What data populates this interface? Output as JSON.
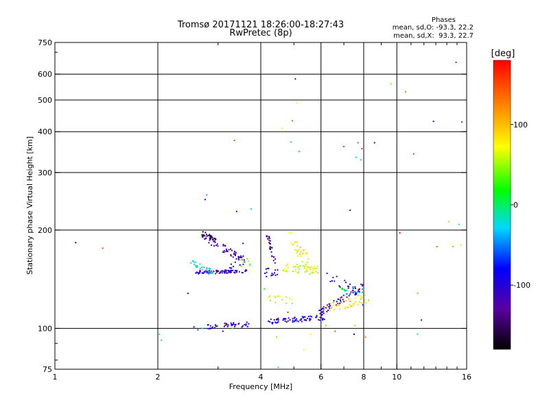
{
  "chart_data": {
    "type": "scatter",
    "title": "Tromsø 20171121 18:26:00-18:27:43",
    "subtitle": "RwPretec (8p)",
    "xlabel": "Frequency [MHz]",
    "ylabel": "Stationary phase Virtual Height [km]",
    "x_scale": "log",
    "y_scale": "log",
    "xlim": [
      1,
      16
    ],
    "ylim": [
      75,
      750
    ],
    "x_ticks": [
      1,
      2,
      4,
      6,
      8,
      10,
      16
    ],
    "x_tick_labels": [
      "1",
      "2",
      "4",
      "6",
      "8",
      "10",
      "16"
    ],
    "y_ticks": [
      75,
      100,
      200,
      300,
      400,
      500,
      600,
      750
    ],
    "y_tick_labels": [
      "75",
      "100",
      "200",
      "300",
      "400",
      "500",
      "600",
      "750"
    ],
    "grid": true,
    "phases_box": {
      "title": "Phases",
      "line_o": "mean, sd,O: -93.3, 22.2",
      "line_x": "mean, sd,X:  93.3, 22.7"
    },
    "colorbar": {
      "label": "[deg]",
      "range": [
        -180,
        180
      ],
      "ticks": [
        100,
        0,
        -100
      ],
      "tick_labels": [
        "100",
        "0",
        "-100"
      ]
    },
    "series": [
      {
        "points": [
          [
            1.15,
            183,
            -100
          ],
          [
            1.38,
            176,
            150
          ],
          [
            2.02,
            96,
            -10
          ],
          [
            2.05,
            92,
            -30
          ],
          [
            2.45,
            128,
            -100
          ],
          [
            2.55,
            101,
            -90
          ],
          [
            2.62,
            99,
            -60
          ],
          [
            2.7,
            100,
            -20
          ],
          [
            2.75,
            248,
            -80
          ],
          [
            2.78,
            256,
            -40
          ],
          [
            2.95,
            101,
            -20
          ],
          [
            3.1,
            98,
            -100
          ],
          [
            3.3,
            100,
            30
          ],
          [
            3.35,
            376,
            150
          ],
          [
            3.4,
            228,
            -100
          ],
          [
            3.55,
            182,
            -100
          ],
          [
            3.75,
            232,
            -20
          ],
          [
            4.1,
            132,
            20
          ],
          [
            4.25,
            182,
            -150
          ],
          [
            4.45,
            94,
            40
          ],
          [
            4.5,
            76,
            -30
          ],
          [
            4.62,
            410,
            80
          ],
          [
            4.8,
            112,
            170
          ],
          [
            4.85,
            196,
            70
          ],
          [
            4.9,
            372,
            -10
          ],
          [
            4.95,
            432,
            140
          ],
          [
            5.05,
            580,
            -110
          ],
          [
            5.1,
            490,
            80
          ],
          [
            5.18,
            348,
            10
          ],
          [
            5.35,
            86,
            80
          ],
          [
            5.6,
            96,
            80
          ],
          [
            6.2,
            102,
            30
          ],
          [
            6.6,
            98,
            150
          ],
          [
            7.0,
            360,
            160
          ],
          [
            7.3,
            230,
            -110
          ],
          [
            7.5,
            96,
            -80
          ],
          [
            7.55,
            102,
            40
          ],
          [
            7.6,
            334,
            0
          ],
          [
            7.7,
            370,
            150
          ],
          [
            7.85,
            328,
            -30
          ],
          [
            7.9,
            355,
            160
          ],
          [
            7.95,
            118,
            -60
          ],
          [
            8.1,
            94,
            130
          ],
          [
            8.6,
            370,
            -120
          ],
          [
            9.6,
            560,
            40
          ],
          [
            10.2,
            196,
            170
          ],
          [
            10.6,
            530,
            130
          ],
          [
            11.2,
            342,
            160
          ],
          [
            11.5,
            128,
            30
          ],
          [
            11.5,
            96,
            -10
          ],
          [
            11.8,
            106,
            -130
          ],
          [
            12.8,
            430,
            -110
          ],
          [
            13.1,
            178,
            140
          ],
          [
            14.2,
            212,
            100
          ],
          [
            14.6,
            178,
            110
          ],
          [
            14.9,
            652,
            -60
          ],
          [
            15.2,
            208,
            -20
          ],
          [
            15.4,
            180,
            90
          ],
          [
            15.5,
            428,
            -60
          ]
        ],
        "clusters": [
          {
            "x": [
              2.55,
              3.65
            ],
            "y": [
              148,
              150
            ],
            "phase": -110,
            "n": 90,
            "spread": 0.012
          },
          {
            "x": [
              2.5,
              2.9
            ],
            "y": [
              160,
              148
            ],
            "phase": -20,
            "n": 30,
            "spread": 0.02
          },
          {
            "x": [
              2.7,
              3.55
            ],
            "y": [
              192,
              162
            ],
            "phase": -120,
            "n": 60,
            "spread": 0.03
          },
          {
            "x": [
              2.7,
              3.0
            ],
            "y": [
              196,
              186
            ],
            "phase": -150,
            "n": 20,
            "spread": 0.015
          },
          {
            "x": [
              3.2,
              3.6
            ],
            "y": [
              152,
              162
            ],
            "phase": -90,
            "n": 10,
            "spread": 0.03
          },
          {
            "x": [
              2.8,
              3.7
            ],
            "y": [
              101,
              103
            ],
            "phase": -105,
            "n": 40,
            "spread": 0.018
          },
          {
            "x": [
              3.45,
              3.75
            ],
            "y": [
              158,
              160
            ],
            "phase": 40,
            "n": 8,
            "spread": 0.03
          },
          {
            "x": [
              4.15,
              4.4
            ],
            "y": [
              200,
              158
            ],
            "phase": -130,
            "n": 25,
            "spread": 0.03
          },
          {
            "x": [
              4.1,
              4.5
            ],
            "y": [
              148,
              150
            ],
            "phase": -100,
            "n": 15,
            "spread": 0.03
          },
          {
            "x": [
              4.6,
              5.9
            ],
            "y": [
              154,
              150
            ],
            "phase": 70,
            "n": 55,
            "spread": 0.03
          },
          {
            "x": [
              4.85,
              5.5
            ],
            "y": [
              190,
              160
            ],
            "phase": 80,
            "n": 30,
            "spread": 0.05
          },
          {
            "x": [
              4.2,
              6.2
            ],
            "y": [
              105,
              108
            ],
            "phase": -100,
            "n": 70,
            "spread": 0.018
          },
          {
            "x": [
              5.8,
              8.0
            ],
            "y": [
              110,
              135
            ],
            "phase": -110,
            "n": 60,
            "spread": 0.025
          },
          {
            "x": [
              6.3,
              8.4
            ],
            "y": [
              115,
              125
            ],
            "phase": 80,
            "n": 45,
            "spread": 0.035
          },
          {
            "x": [
              6.2,
              7.6
            ],
            "y": [
              146,
              130
            ],
            "phase": -90,
            "n": 20,
            "spread": 0.04
          },
          {
            "x": [
              4.2,
              5.0
            ],
            "y": [
              122,
              122
            ],
            "phase": 70,
            "n": 15,
            "spread": 0.03
          },
          {
            "x": [
              6.8,
              8.0
            ],
            "y": [
              132,
              128
            ],
            "phase": -10,
            "n": 15,
            "spread": 0.03
          }
        ]
      }
    ]
  }
}
